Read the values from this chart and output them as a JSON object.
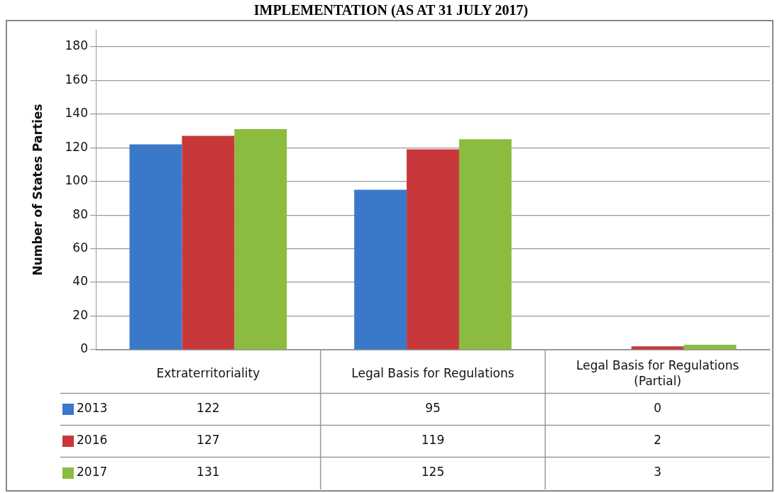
{
  "chart_data": {
    "type": "bar",
    "title": "IMPLEMENTATION (AS AT 31 JULY 2017)",
    "ylabel": "Number of States Parties",
    "categories": [
      "Extraterritoriality",
      "Legal Basis for Regulations",
      "Legal Basis for Regulations (Partial)"
    ],
    "series": [
      {
        "name": "2013",
        "color": "#3a78c9",
        "values": [
          122,
          95,
          0
        ]
      },
      {
        "name": "2016",
        "color": "#c8383a",
        "values": [
          127,
          119,
          2
        ]
      },
      {
        "name": "2017",
        "color": "#8cbc3f",
        "values": [
          131,
          125,
          3
        ]
      }
    ],
    "ylim": [
      0,
      190
    ],
    "yticks": [
      0,
      20,
      40,
      60,
      80,
      100,
      120,
      140,
      160,
      180
    ],
    "grid": "y",
    "legend": "bottom",
    "data_labels": true
  }
}
